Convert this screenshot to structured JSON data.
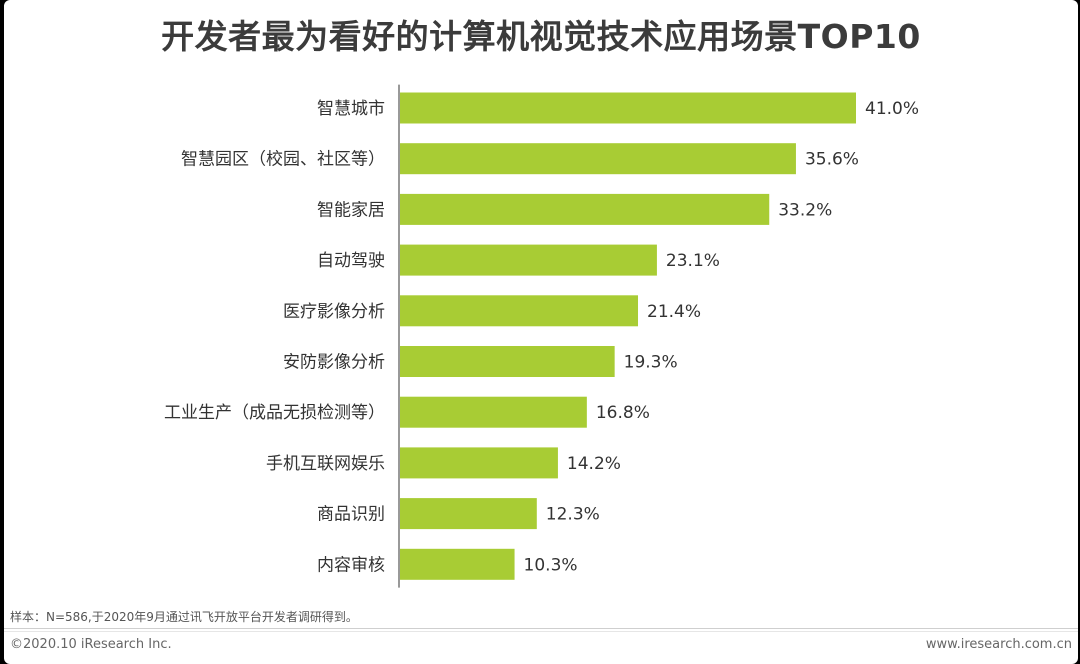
{
  "chart_data": {
    "type": "bar",
    "orientation": "horizontal",
    "title": "开发者最为看好的计算机视觉技术应用场景TOP10",
    "categories": [
      "智慧城市",
      "智慧园区（校园、社区等）",
      "智能家居",
      "自动驾驶",
      "医疗影像分析",
      "安防影像分析",
      "工业生产（成品无损检测等）",
      "手机互联网娱乐",
      "商品识别",
      "内容审核"
    ],
    "values": [
      41.0,
      35.6,
      33.2,
      23.1,
      21.4,
      19.3,
      16.8,
      14.2,
      12.3,
      10.3
    ],
    "value_labels": [
      "41.0%",
      "35.6%",
      "33.2%",
      "23.1%",
      "21.4%",
      "19.3%",
      "16.8%",
      "14.2%",
      "12.3%",
      "10.3%"
    ],
    "unit": "%",
    "xlim": [
      0,
      41.0
    ],
    "bar_color": "#a8cc34",
    "grid": false,
    "legend": "none"
  },
  "note": "样本：N=586,于2020年9月通过讯飞开放平台开发者调研得到。",
  "copyright": "©2020.10 iResearch Inc.",
  "website": "www.iresearch.com.cn"
}
